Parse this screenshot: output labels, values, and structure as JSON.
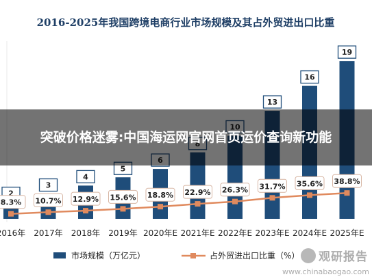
{
  "chart_data": {
    "type": "bar+line",
    "title": "2016-2025年我国跨境电商行业市场规模及其占外贸进出口比重",
    "categories": [
      "2016年",
      "2017年",
      "2018年",
      "2019年",
      "2020年E",
      "2021年E",
      "2022年E",
      "2023年E",
      "2024年E",
      "2025年E"
    ],
    "bar_series": {
      "name": "市场规模（万亿元）",
      "values": [
        2,
        3,
        4,
        5,
        6,
        8,
        10,
        13,
        16,
        19
      ],
      "labels": [
        "2",
        "3",
        "4",
        "5",
        "6",
        "8",
        "10",
        "13",
        "16",
        "19"
      ],
      "color": "#1f4d7a"
    },
    "line_series": {
      "name": "占外贸进出口比重（%）",
      "values": [
        8.3,
        10.7,
        12.9,
        15.6,
        18.8,
        22.9,
        26.3,
        31.7,
        35.6,
        38.8
      ],
      "labels": [
        "8.3%",
        "10.7%",
        "12.9%",
        "15.6%",
        "18.8%",
        "22.9%",
        "26.3%",
        "31.7%",
        "35.6%",
        "38.8%"
      ],
      "color": "#e08a5e"
    },
    "ylim_bar": [
      0,
      20
    ],
    "ylim_line": [
      0,
      100
    ],
    "legend_position": "bottom",
    "grid": false
  },
  "overlay": {
    "text": "突破价格迷雾:中国海运网官网首页运价查询新功能"
  },
  "watermark": {
    "brand_cn": "观研报告",
    "brand_en": "www.chinabaogao.com"
  },
  "colors": {
    "bar": "#1f4d7a",
    "line": "#e08a5e",
    "title": "#1f3f66",
    "overlay": "rgba(0,0,0,0.55)"
  }
}
